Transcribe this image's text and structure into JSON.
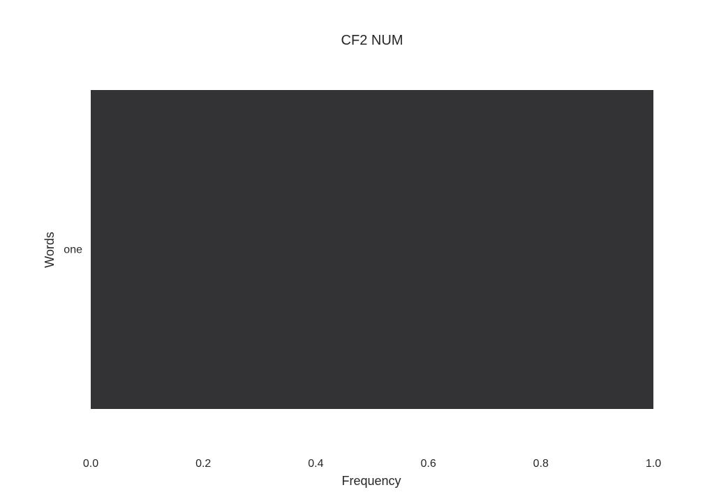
{
  "chart_data": {
    "type": "bar",
    "orientation": "horizontal",
    "title": "CF2 NUM",
    "xlabel": "Frequency",
    "ylabel": "Words",
    "categories": [
      "one"
    ],
    "values": [
      1.0
    ],
    "xlim": [
      0.0,
      1.0
    ],
    "xticks": [
      "0.0",
      "0.2",
      "0.4",
      "0.6",
      "0.8",
      "1.0"
    ],
    "grid": false,
    "legend": "none",
    "bar_color": "#333335",
    "background_color": "#ffffff",
    "text_color": "#262626"
  }
}
